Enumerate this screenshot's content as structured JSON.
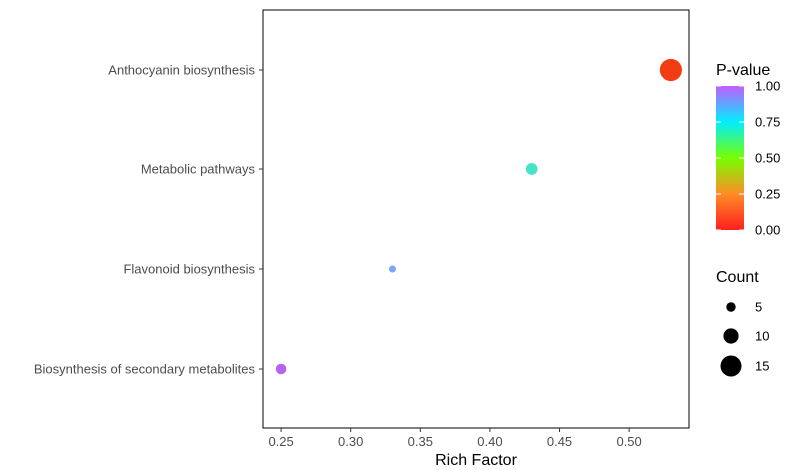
{
  "chart_data": {
    "type": "scatter",
    "xlabel": "Rich Factor",
    "ylabel": "",
    "xlim": [
      0.237,
      0.543
    ],
    "x_ticks": [
      "0.25",
      "0.30",
      "0.35",
      "0.40",
      "0.45",
      "0.50"
    ],
    "x_tick_values": [
      0.25,
      0.3,
      0.35,
      0.4,
      0.45,
      0.5
    ],
    "categories": [
      "Biosynthesis of secondary metabolites",
      "Flavonoid biosynthesis",
      "Metabolic pathways",
      "Anthocyanin biosynthesis"
    ],
    "points": [
      {
        "pathway": "Anthocyanin biosynthesis",
        "rich_factor": 0.53,
        "count": 16,
        "p_value": 0.02,
        "color": "#f23d14"
      },
      {
        "pathway": "Metabolic pathways",
        "rich_factor": 0.43,
        "count": 7,
        "p_value": 0.8,
        "color": "#45e3c8"
      },
      {
        "pathway": "Flavonoid biosynthesis",
        "rich_factor": 0.33,
        "count": 3,
        "p_value": 0.93,
        "color": "#7aa8f2"
      },
      {
        "pathway": "Biosynthesis of secondary metabolites",
        "rich_factor": 0.25,
        "count": 6,
        "p_value": 1.0,
        "color": "#b464f0"
      }
    ],
    "grid": false,
    "legend_position": "right",
    "color_legend": {
      "title": "P-value",
      "ticks": [
        "1.00",
        "0.75",
        "0.50",
        "0.25",
        "0.00"
      ],
      "tick_values": [
        1.0,
        0.75,
        0.5,
        0.25,
        0.0
      ],
      "gradient": [
        {
          "value": 0.0,
          "color": "#ff1f1f"
        },
        {
          "value": 0.25,
          "color": "#ff8c26"
        },
        {
          "value": 0.5,
          "color": "#77ff00"
        },
        {
          "value": 0.75,
          "color": "#00eeff"
        },
        {
          "value": 1.0,
          "color": "#c35cff"
        }
      ]
    },
    "size_legend": {
      "title": "Count",
      "values": [
        5,
        10,
        15
      ],
      "labels": [
        "5",
        "10",
        "15"
      ]
    }
  }
}
